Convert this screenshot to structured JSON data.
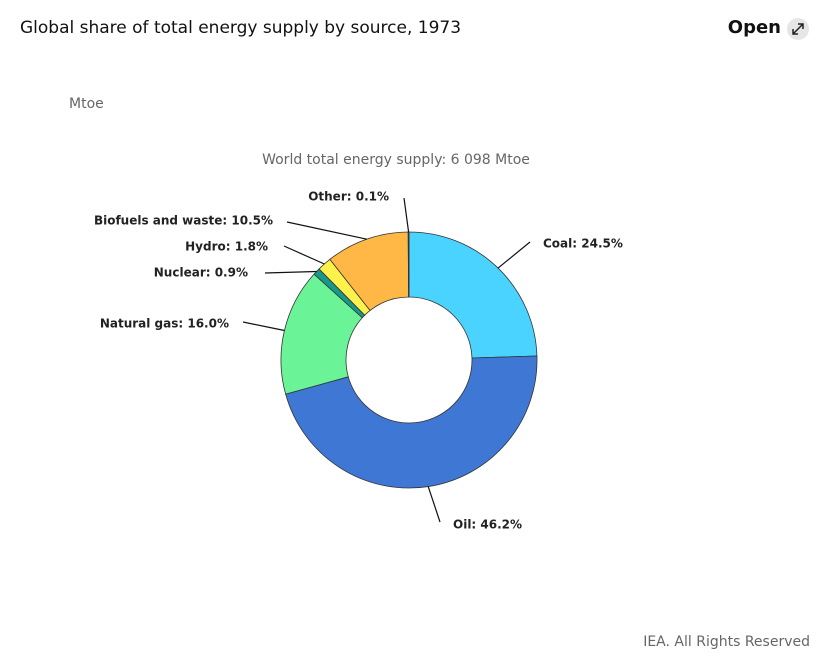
{
  "header": {
    "title": "Global share of total energy supply by source, 1973",
    "button": "Open"
  },
  "chart_data": {
    "type": "donut",
    "unit_label": "Mtoe",
    "subtitle": "World total energy supply: 6 098 Mtoe",
    "values": [
      24.5,
      46.2,
      16.0,
      0.9,
      1.8,
      10.5,
      0.1
    ],
    "value_labels": [
      "Coal: 24.5%",
      "Oil: 46.2%",
      "Natural gas: 16.0%",
      "Nuclear: 0.9%",
      "Hydro: 1.8%",
      "Biofuels and waste: 10.5%",
      "Other: 0.1%"
    ],
    "colors": [
      "#4bd3ff",
      "#3f78d4",
      "#6bf397",
      "#16998b",
      "#fdf24c",
      "#ffb846",
      "#9aa0a6"
    ]
  },
  "footer": {
    "credit": "IEA. All Rights Reserved"
  }
}
